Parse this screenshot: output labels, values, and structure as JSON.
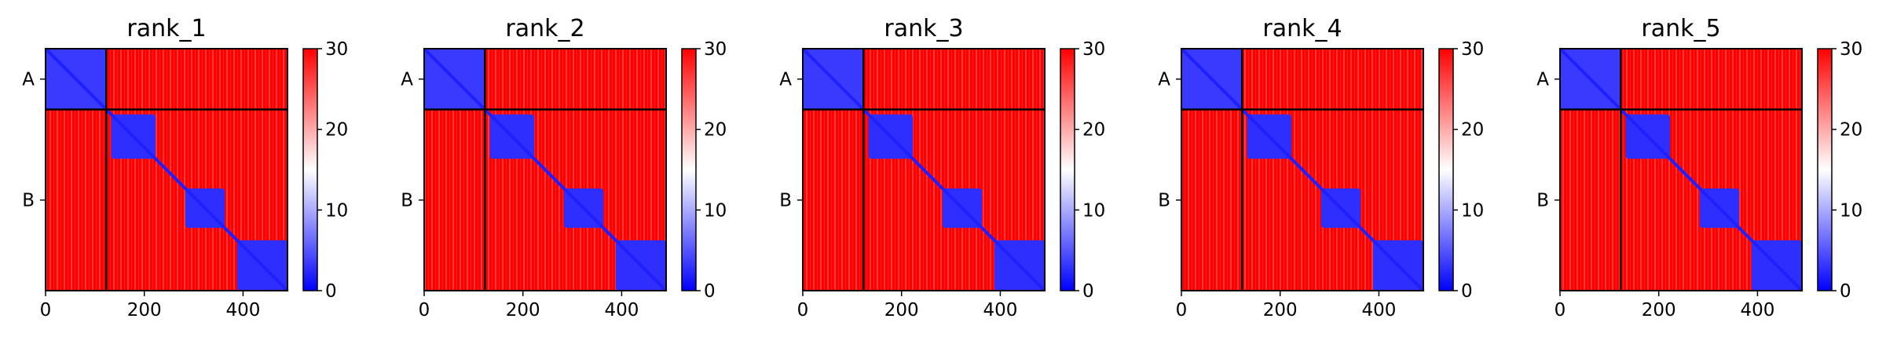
{
  "chart_data": [
    {
      "type": "heatmap",
      "title": "rank_1",
      "xlim": [
        0,
        490
      ],
      "xticks": [
        0,
        200,
        400
      ],
      "ytick_labels": [
        "A",
        "B"
      ],
      "chains": [
        {
          "name": "A",
          "start": 0,
          "end": 123
        },
        {
          "name": "B",
          "start": 123,
          "end": 490
        }
      ],
      "colorbar": {
        "min": 0,
        "max": 30,
        "ticks": [
          0,
          10,
          20,
          30
        ],
        "colors": [
          "#0000ff",
          "#ffffff",
          "#ff0000"
        ]
      }
    },
    {
      "type": "heatmap",
      "title": "rank_2",
      "xlim": [
        0,
        490
      ],
      "xticks": [
        0,
        200,
        400
      ],
      "ytick_labels": [
        "A",
        "B"
      ],
      "chains": [
        {
          "name": "A",
          "start": 0,
          "end": 123
        },
        {
          "name": "B",
          "start": 123,
          "end": 490
        }
      ],
      "colorbar": {
        "min": 0,
        "max": 30,
        "ticks": [
          0,
          10,
          20,
          30
        ],
        "colors": [
          "#0000ff",
          "#ffffff",
          "#ff0000"
        ]
      }
    },
    {
      "type": "heatmap",
      "title": "rank_3",
      "xlim": [
        0,
        490
      ],
      "xticks": [
        0,
        200,
        400
      ],
      "ytick_labels": [
        "A",
        "B"
      ],
      "chains": [
        {
          "name": "A",
          "start": 0,
          "end": 123
        },
        {
          "name": "B",
          "start": 123,
          "end": 490
        }
      ],
      "colorbar": {
        "min": 0,
        "max": 30,
        "ticks": [
          0,
          10,
          20,
          30
        ],
        "colors": [
          "#0000ff",
          "#ffffff",
          "#ff0000"
        ]
      }
    },
    {
      "type": "heatmap",
      "title": "rank_4",
      "xlim": [
        0,
        490
      ],
      "xticks": [
        0,
        200,
        400
      ],
      "ytick_labels": [
        "A",
        "B"
      ],
      "chains": [
        {
          "name": "A",
          "start": 0,
          "end": 123
        },
        {
          "name": "B",
          "start": 123,
          "end": 490
        }
      ],
      "colorbar": {
        "min": 0,
        "max": 30,
        "ticks": [
          0,
          10,
          20,
          30
        ],
        "colors": [
          "#0000ff",
          "#ffffff",
          "#ff0000"
        ]
      }
    },
    {
      "type": "heatmap",
      "title": "rank_5",
      "xlim": [
        0,
        490
      ],
      "xticks": [
        0,
        200,
        400
      ],
      "ytick_labels": [
        "A",
        "B"
      ],
      "chains": [
        {
          "name": "A",
          "start": 0,
          "end": 123
        },
        {
          "name": "B",
          "start": 123,
          "end": 490
        }
      ],
      "colorbar": {
        "min": 0,
        "max": 30,
        "ticks": [
          0,
          10,
          20,
          30
        ],
        "colors": [
          "#0000ff",
          "#ffffff",
          "#ff0000"
        ]
      }
    }
  ]
}
